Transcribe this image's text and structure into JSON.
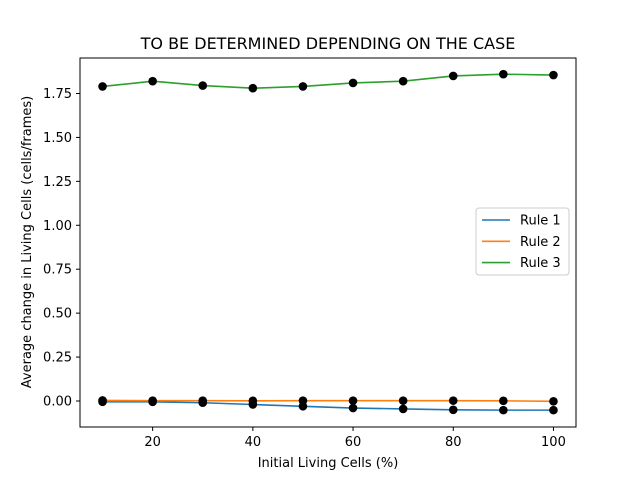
{
  "chart_data": {
    "type": "line",
    "title": "TO BE DETERMINED DEPENDING ON THE CASE",
    "xlabel": "Initial Living Cells (%)",
    "ylabel": "Average change in Living Cells (cells/frames)",
    "x": [
      10,
      20,
      30,
      40,
      50,
      60,
      70,
      80,
      90,
      100
    ],
    "xlim": [
      5.5,
      104.5
    ],
    "ylim": [
      -0.148,
      1.952
    ],
    "xticks": [
      20,
      40,
      60,
      80,
      100
    ],
    "xtick_labels": [
      "20",
      "40",
      "60",
      "80",
      "100"
    ],
    "yticks": [
      0.0,
      0.25,
      0.5,
      0.75,
      1.0,
      1.25,
      1.5,
      1.75
    ],
    "ytick_labels": [
      "0.00",
      "0.25",
      "0.50",
      "0.75",
      "1.00",
      "1.25",
      "1.50",
      "1.75"
    ],
    "grid": false,
    "legend_position": "right",
    "series": [
      {
        "name": "Rule 1",
        "color": "#1f77b4",
        "values": [
          -0.005,
          -0.005,
          -0.01,
          -0.02,
          -0.03,
          -0.04,
          -0.045,
          -0.05,
          -0.052,
          -0.052
        ]
      },
      {
        "name": "Rule 2",
        "color": "#ff7f0e",
        "values": [
          0.003,
          0.002,
          0.002,
          0.001,
          0.002,
          0.002,
          0.002,
          0.002,
          0.001,
          -0.002
        ]
      },
      {
        "name": "Rule 3",
        "color": "#2ca02c",
        "values": [
          1.79,
          1.82,
          1.795,
          1.78,
          1.79,
          1.81,
          1.82,
          1.85,
          1.86,
          1.855
        ]
      }
    ],
    "marker_color": "#000000"
  }
}
